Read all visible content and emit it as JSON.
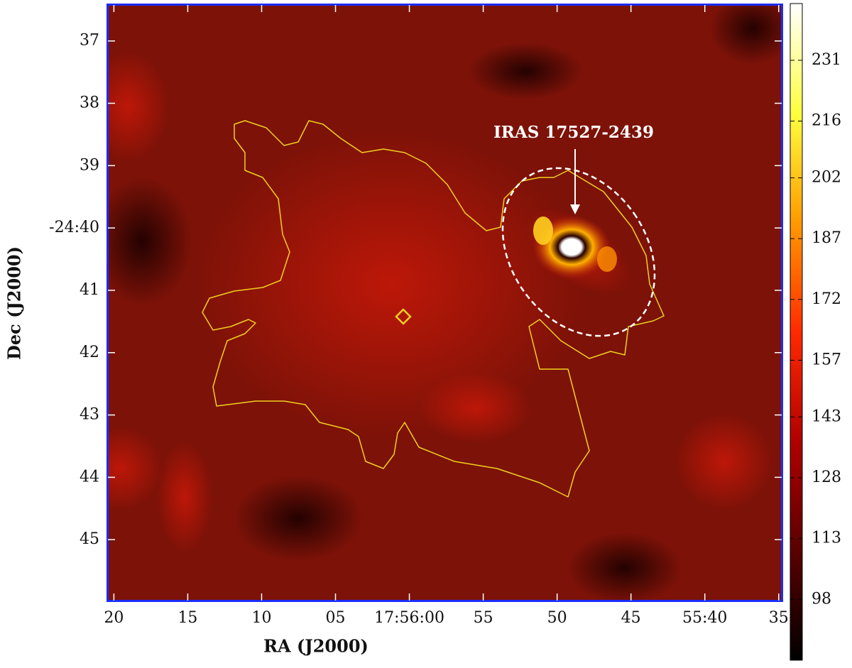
{
  "chart_data": {
    "type": "image",
    "xlabel": "RA (J2000)",
    "ylabel": "Dec (J2000)",
    "annotation": "IRAS 17527-2439",
    "xlim": [
      3380.5,
      3334.7
    ],
    "xticks": [
      {
        "value": 3380,
        "label": "20"
      },
      {
        "value": 3375,
        "label": "15"
      },
      {
        "value": 3370,
        "label": "10"
      },
      {
        "value": 3365,
        "label": "05"
      },
      {
        "value": 3360,
        "label": "17:56:00"
      },
      {
        "value": 3355,
        "label": "55"
      },
      {
        "value": 3350,
        "label": "50"
      },
      {
        "value": 3345,
        "label": "45"
      },
      {
        "value": 3340,
        "label": "55:40"
      },
      {
        "value": 3335,
        "label": "35"
      }
    ],
    "ylim": [
      -1486.0,
      -1476.4
    ],
    "yticks": [
      {
        "value": -1477,
        "label": "37"
      },
      {
        "value": -1478,
        "label": "38"
      },
      {
        "value": -1479,
        "label": "39"
      },
      {
        "value": -1480,
        "label": "-24:40"
      },
      {
        "value": -1481,
        "label": "41"
      },
      {
        "value": -1482,
        "label": "42"
      },
      {
        "value": -1483,
        "label": "43"
      },
      {
        "value": -1484,
        "label": "44"
      },
      {
        "value": -1485,
        "label": "45"
      }
    ],
    "clim": [
      83,
      245
    ],
    "cticks": [
      231,
      216,
      202,
      187,
      172,
      157,
      143,
      128,
      113,
      98
    ],
    "colormap": [
      "#000000",
      "#5a0000",
      "#b00000",
      "#ff2a00",
      "#ff9a00",
      "#ffff40",
      "#ffffff"
    ]
  }
}
